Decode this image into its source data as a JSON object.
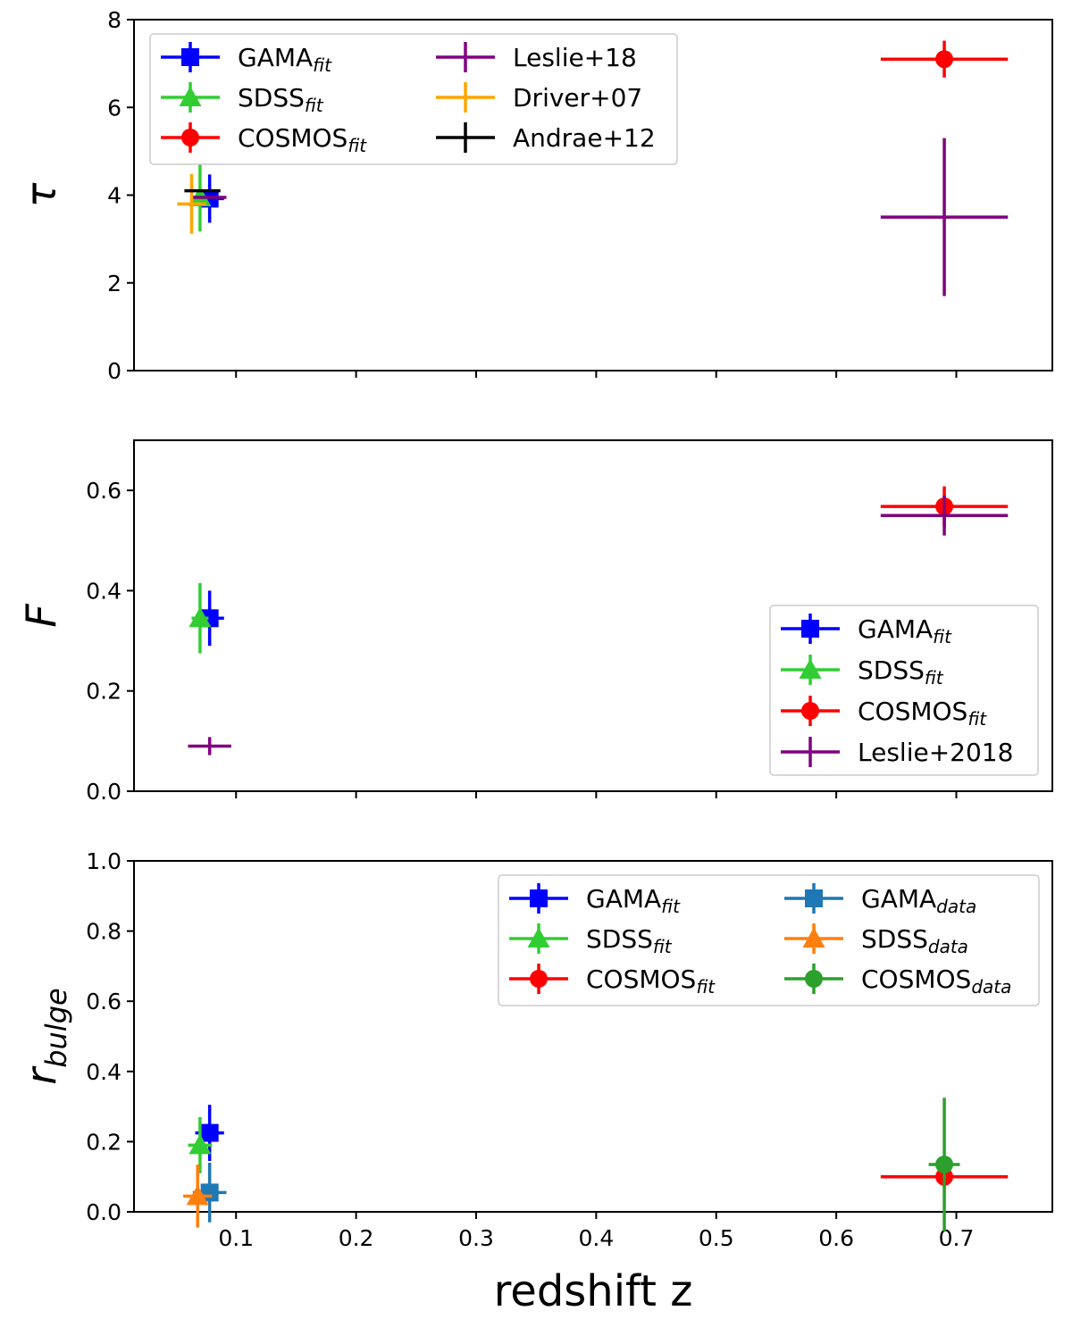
{
  "figure": {
    "xlabel": "redshift z"
  },
  "colors": {
    "GAMA_fit": "#0000ff",
    "SDSS_fit": "#32cd32",
    "COSMOS_fit": "#ff0000",
    "Leslie": "#800080",
    "Driver": "#ffa500",
    "Andrae": "#000000",
    "GAMA_data": "#1f77b4",
    "SDSS_data": "#ff7f0e",
    "COSMOS_data": "#2ca02c"
  },
  "chart_data": [
    {
      "type": "scatter",
      "ylabel": "τ",
      "xlim": [
        0.015,
        0.78
      ],
      "ylim": [
        0,
        8
      ],
      "xticks": [
        0.1,
        0.2,
        0.3,
        0.4,
        0.5,
        0.6,
        0.7
      ],
      "xticklabels": [
        "",
        "",
        "",
        "",
        "",
        "",
        ""
      ],
      "yticks": [
        0,
        2,
        4,
        6,
        8
      ],
      "yticklabels": [
        "0",
        "2",
        "4",
        "6",
        "8"
      ],
      "legend": {
        "placement": "top-left",
        "columns": 2
      },
      "series": [
        {
          "key": "gama_fit",
          "name": "GAMA",
          "sub": "fit",
          "color": "#0000ff",
          "marker": "square",
          "points": [
            {
              "x": 0.078,
              "y": 3.92,
              "xerr": 0.012,
              "yerr": 0.55
            }
          ]
        },
        {
          "key": "sdss_fit",
          "name": "SDSS",
          "sub": "fit",
          "color": "#32cd32",
          "marker": "triangle",
          "points": [
            {
              "x": 0.07,
              "y": 3.95,
              "xerr": 0.007,
              "yerr": 0.78
            }
          ]
        },
        {
          "key": "cosmos_fit",
          "name": "COSMOS",
          "sub": "fit",
          "color": "#ff0000",
          "marker": "circle",
          "points": [
            {
              "x": 0.69,
              "y": 7.1,
              "xerr": 0.053,
              "yerr": 0.42
            }
          ]
        },
        {
          "key": "leslie",
          "name": "Leslie+18",
          "sub": "",
          "color": "#800080",
          "marker": "none",
          "points": [
            {
              "x": 0.69,
              "y": 3.5,
              "xerr": 0.053,
              "yerr": 1.8
            },
            {
              "x": 0.078,
              "y": 3.95,
              "xerr": 0.014,
              "yerr": 0.0
            }
          ]
        },
        {
          "key": "driver",
          "name": "Driver+07",
          "sub": "",
          "color": "#ffa500",
          "marker": "none",
          "points": [
            {
              "x": 0.063,
              "y": 3.8,
              "xerr": 0.012,
              "yerr": 0.68
            }
          ]
        },
        {
          "key": "andrae",
          "name": "Andrae+12",
          "sub": "",
          "color": "#000000",
          "marker": "none",
          "points": [
            {
              "x": 0.072,
              "y": 4.1,
              "xerr": 0.015,
              "yerr": 0.0
            }
          ]
        }
      ]
    },
    {
      "type": "scatter",
      "ylabel": "F",
      "xlim": [
        0.015,
        0.78
      ],
      "ylim": [
        0,
        0.7
      ],
      "xticks": [
        0.1,
        0.2,
        0.3,
        0.4,
        0.5,
        0.6,
        0.7
      ],
      "xticklabels": [
        "",
        "",
        "",
        "",
        "",
        "",
        ""
      ],
      "yticks": [
        0.0,
        0.2,
        0.4,
        0.6
      ],
      "yticklabels": [
        "0.0",
        "0.2",
        "0.4",
        "0.6"
      ],
      "legend": {
        "placement": "center-right",
        "columns": 1
      },
      "series": [
        {
          "key": "gama_fit",
          "name": "GAMA",
          "sub": "fit",
          "color": "#0000ff",
          "marker": "square",
          "points": [
            {
              "x": 0.078,
              "y": 0.345,
              "xerr": 0.012,
              "yerr": 0.055
            }
          ]
        },
        {
          "key": "sdss_fit",
          "name": "SDSS",
          "sub": "fit",
          "color": "#32cd32",
          "marker": "triangle",
          "points": [
            {
              "x": 0.07,
              "y": 0.345,
              "xerr": 0.007,
              "yerr": 0.07
            }
          ]
        },
        {
          "key": "cosmos_fit",
          "name": "COSMOS",
          "sub": "fit",
          "color": "#ff0000",
          "marker": "circle",
          "points": [
            {
              "x": 0.69,
              "y": 0.568,
              "xerr": 0.053,
              "yerr": 0.04
            }
          ]
        },
        {
          "key": "leslie",
          "name": "Leslie+2018",
          "sub": "",
          "color": "#800080",
          "marker": "none",
          "points": [
            {
              "x": 0.69,
              "y": 0.55,
              "xerr": 0.053,
              "yerr": 0.04
            },
            {
              "x": 0.078,
              "y": 0.09,
              "xerr": 0.018,
              "yerr": 0.018
            }
          ]
        }
      ]
    },
    {
      "type": "scatter",
      "ylabel": "r",
      "ylabel_sub": "bulge",
      "xlim": [
        0.015,
        0.78
      ],
      "ylim": [
        0,
        1.0
      ],
      "xticks": [
        0.1,
        0.2,
        0.3,
        0.4,
        0.5,
        0.6,
        0.7
      ],
      "xticklabels": [
        "0.1",
        "0.2",
        "0.3",
        "0.4",
        "0.5",
        "0.6",
        "0.7"
      ],
      "yticks": [
        0.0,
        0.2,
        0.4,
        0.6,
        0.8,
        1.0
      ],
      "yticklabels": [
        "0.0",
        "0.2",
        "0.4",
        "0.6",
        "0.8",
        "1.0"
      ],
      "legend": {
        "placement": "top-right",
        "columns": 2
      },
      "series": [
        {
          "key": "gama_fit",
          "name": "GAMA",
          "sub": "fit",
          "color": "#0000ff",
          "marker": "square",
          "points": [
            {
              "x": 0.078,
              "y": 0.225,
              "xerr": 0.012,
              "yerr": 0.08
            }
          ]
        },
        {
          "key": "sdss_fit",
          "name": "SDSS",
          "sub": "fit",
          "color": "#32cd32",
          "marker": "triangle",
          "points": [
            {
              "x": 0.07,
              "y": 0.19,
              "xerr": 0.01,
              "yerr": 0.08
            }
          ]
        },
        {
          "key": "cosmos_fit",
          "name": "COSMOS",
          "sub": "fit",
          "color": "#ff0000",
          "marker": "circle",
          "points": [
            {
              "x": 0.69,
              "y": 0.1,
              "xerr": 0.053,
              "yerr": 0.03
            }
          ]
        },
        {
          "key": "gama_data",
          "name": "GAMA",
          "sub": "data",
          "color": "#1f77b4",
          "marker": "square",
          "points": [
            {
              "x": 0.078,
              "y": 0.055,
              "xerr": 0.014,
              "yerr": 0.085
            }
          ]
        },
        {
          "key": "sdss_data",
          "name": "SDSS",
          "sub": "data",
          "color": "#ff7f0e",
          "marker": "triangle",
          "points": [
            {
              "x": 0.068,
              "y": 0.045,
              "xerr": 0.012,
              "yerr": 0.09
            }
          ]
        },
        {
          "key": "cosmos_data",
          "name": "COSMOS",
          "sub": "data",
          "color": "#2ca02c",
          "marker": "circle",
          "points": [
            {
              "x": 0.69,
              "y": 0.135,
              "xerr": 0.013,
              "yerr": 0.19
            }
          ]
        }
      ]
    }
  ]
}
